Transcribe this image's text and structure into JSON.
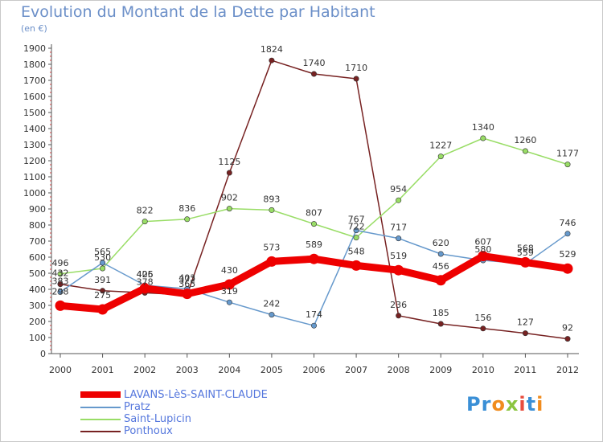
{
  "title": "Evolution du Montant de la Dette par Habitant",
  "subtitle": "(en €)",
  "logo": {
    "letters": [
      "P",
      "r",
      "o",
      "x",
      "i",
      "t",
      "i"
    ],
    "colors": [
      "#3a8fd6",
      "#3a8fd6",
      "#f08c1e",
      "#8bc53f",
      "#e84c3d",
      "#3a8fd6",
      "#f08c1e"
    ]
  },
  "chart_data": {
    "type": "line",
    "title": "Evolution du Montant de la Dette par Habitant",
    "subtitle": "(en €)",
    "x": [
      "2000",
      "2001",
      "2002",
      "2003",
      "2004",
      "2005",
      "2006",
      "2007",
      "2008",
      "2009",
      "2010",
      "2011",
      "2012"
    ],
    "ylim": [
      0,
      1900
    ],
    "yticks": [
      0,
      100,
      200,
      300,
      400,
      500,
      600,
      700,
      800,
      900,
      1000,
      1100,
      1200,
      1300,
      1400,
      1500,
      1600,
      1700,
      1800,
      1900
    ],
    "grid": false,
    "legend_position": "bottom-left",
    "series": [
      {
        "name": "LAVANS-LèS-SAINT-CLAUDE",
        "color": "#ee0000",
        "values": [
          298,
          275,
          406,
          372,
          430,
          573,
          589,
          548,
          519,
          456,
          607,
          568,
          529
        ]
      },
      {
        "name": "Pratz",
        "color": "#6699cc",
        "values": [
          383,
          565,
          425,
          403,
          319,
          242,
          174,
          767,
          717,
          620,
          580,
          559,
          746
        ]
      },
      {
        "name": "Saint-Lupicin",
        "color": "#99dd66",
        "values": [
          496,
          530,
          822,
          836,
          902,
          893,
          807,
          722,
          954,
          1227,
          1340,
          1260,
          1177
        ]
      },
      {
        "name": "Ponthoux",
        "color": "#772222",
        "values": [
          432,
          391,
          378,
          365,
          1125,
          1824,
          1740,
          1710,
          236,
          185,
          156,
          127,
          92
        ]
      }
    ]
  }
}
